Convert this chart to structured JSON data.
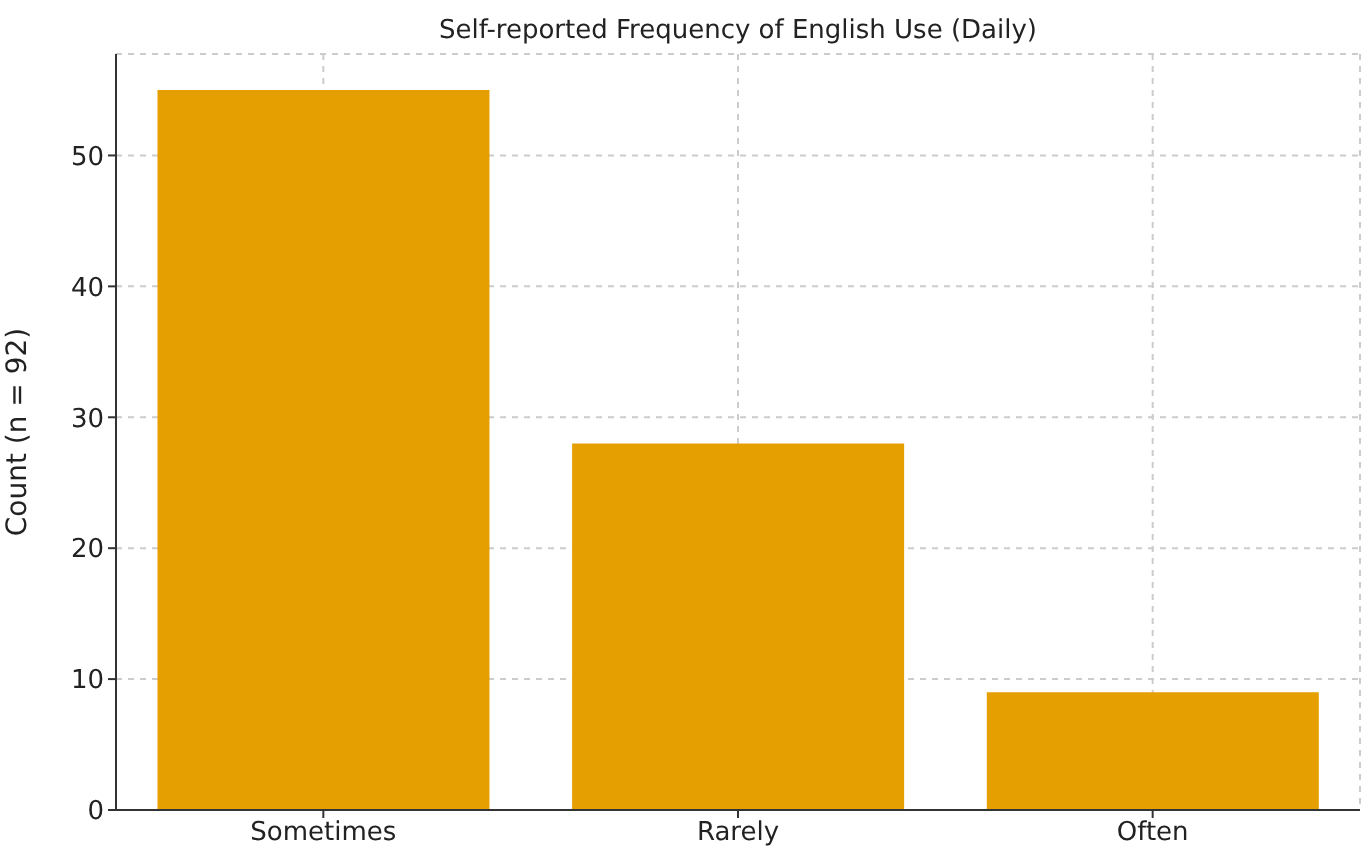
{
  "chart_data": {
    "type": "bar",
    "title": "Self-reported Frequency of English Use (Daily)",
    "ylabel": "Count (n = 92)",
    "categories": [
      "Sometimes",
      "Rarely",
      "Often"
    ],
    "values": [
      55,
      28,
      9
    ],
    "color": "#e69f00",
    "ylim": [
      0,
      57.75
    ],
    "yticks": [
      0,
      10,
      20,
      30,
      40,
      50
    ],
    "grid": true
  }
}
